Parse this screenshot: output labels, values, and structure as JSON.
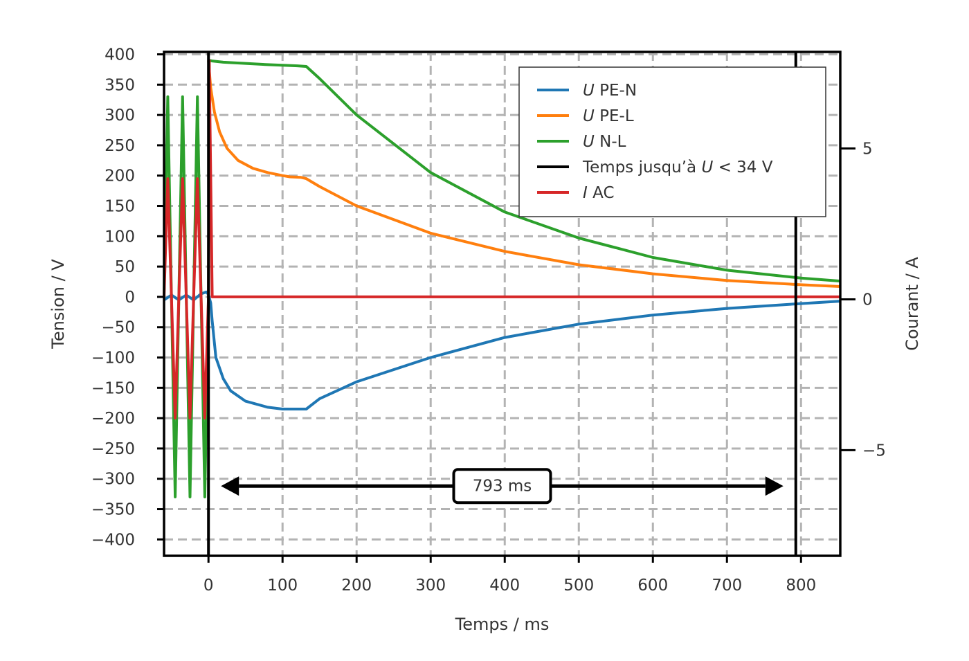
{
  "chart_data": {
    "type": "line",
    "xlabel": "Temps / ms",
    "ylabel": "Tension / V",
    "y2label": "Courant / A",
    "xlim": [
      -60,
      853
    ],
    "ylim": [
      -427,
      404
    ],
    "y2lim": [
      -8.5,
      8.2
    ],
    "xticks": [
      0,
      100,
      200,
      300,
      400,
      500,
      600,
      700,
      800
    ],
    "yticks": [
      400,
      350,
      300,
      250,
      200,
      150,
      100,
      50,
      0,
      -50,
      -100,
      -150,
      -200,
      -250,
      -300,
      -350,
      -400
    ],
    "y2ticks": [
      5,
      0,
      -5
    ],
    "grid": true,
    "legend_position": "top-right",
    "legend": [
      {
        "prefix": "U",
        "label": "PE-N",
        "color": "#1f77b4"
      },
      {
        "prefix": "U",
        "label": "PE-L",
        "color": "#ff7f0e"
      },
      {
        "prefix": "U",
        "label": "N-L",
        "color": "#2ca02c"
      },
      {
        "prefix": "",
        "label": "Temps jusqu’à ",
        "suffix_italic": "U",
        "suffix": " < 34 V",
        "color": "#000000"
      },
      {
        "prefix": "I",
        "label": "AC",
        "color": "#d62728"
      }
    ],
    "series": [
      {
        "name": "U PE-N",
        "color": "#1f77b4",
        "x": [
          -60,
          -50,
          -40,
          -30,
          -20,
          -10,
          -3,
          0,
          3,
          5,
          10,
          20,
          30,
          50,
          80,
          100,
          120,
          132,
          150,
          200,
          300,
          400,
          500,
          600,
          700,
          800,
          853
        ],
        "y": [
          -5,
          3,
          -5,
          3,
          -5,
          5,
          8,
          4,
          -10,
          -40,
          -100,
          -135,
          -155,
          -172,
          -182,
          -185,
          -185,
          -185,
          -168,
          -140,
          -100,
          -67,
          -45,
          -30,
          -19,
          -11,
          -7
        ]
      },
      {
        "name": "U PE-L",
        "color": "#ff7f0e",
        "x": [
          0,
          3,
          8,
          15,
          25,
          40,
          60,
          80,
          100,
          110,
          125,
          132,
          150,
          200,
          300,
          400,
          500,
          600,
          700,
          800,
          853
        ],
        "y": [
          390,
          345,
          305,
          272,
          245,
          225,
          212,
          205,
          200,
          198,
          197,
          195,
          182,
          150,
          105,
          75,
          53,
          38,
          27,
          20,
          17
        ]
      },
      {
        "name": "U N-L",
        "color": "#2ca02c",
        "x": [
          -60,
          -55,
          -50,
          -45,
          -40,
          -35,
          -30,
          -25,
          -20,
          -15,
          -10,
          -5,
          0,
          1,
          5,
          20,
          50,
          80,
          100,
          120,
          132,
          150,
          200,
          300,
          400,
          500,
          600,
          700,
          800,
          853
        ],
        "y": [
          0,
          330,
          0,
          -330,
          0,
          330,
          0,
          -330,
          0,
          330,
          0,
          -330,
          0,
          390,
          389,
          387,
          385,
          383,
          382,
          381,
          380,
          360,
          300,
          205,
          140,
          97,
          65,
          44,
          31,
          26
        ]
      },
      {
        "name": "I AC",
        "color": "#d62728",
        "x": [
          -60,
          -55,
          -50,
          -45,
          -40,
          -35,
          -30,
          -25,
          -20,
          -15,
          -10,
          -5,
          0,
          1,
          5,
          853
        ],
        "y": [
          0,
          195,
          0,
          -200,
          0,
          195,
          0,
          -200,
          0,
          195,
          0,
          -200,
          0,
          390,
          0,
          0
        ]
      }
    ],
    "markers": [
      {
        "name": "Temps jusqu’à U < 34 V",
        "color": "#000000",
        "x": [
          0,
          793
        ]
      }
    ],
    "annotation": {
      "text": "793 ms",
      "x_from": 0,
      "x_to": 793,
      "y": -312
    }
  }
}
